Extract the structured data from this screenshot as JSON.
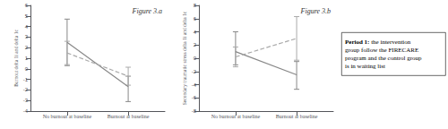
{
  "chart_data": [
    {
      "type": "line",
      "title": "Figure 3.a",
      "ylabel": "Burnout delta 1i and delta 1c",
      "x": [
        0,
        1
      ],
      "xlim": [
        -0.6,
        1.6
      ],
      "xticks": [
        {
          "value": 0,
          "label": "No burnout at baseline"
        },
        {
          "value": 1,
          "label": "Burnout at baseline"
        }
      ],
      "ylim": [
        -4,
        6
      ],
      "yticks": [
        -4,
        -3,
        -2,
        -1,
        0,
        1,
        2,
        3,
        4,
        5,
        6
      ],
      "grid": false,
      "series": [
        {
          "color": "#888888",
          "line_style": "solid",
          "values": [
            2.5,
            -1.7
          ],
          "yerr_low": [
            2.2,
            1.4
          ],
          "yerr_high": [
            2.2,
            1.0
          ]
        },
        {
          "color": "#aaaaaa",
          "line_style": "dashed",
          "values": [
            1.5,
            -0.7
          ],
          "yerr_low": [
            1.1,
            0.85
          ],
          "yerr_high": [
            1.1,
            0.85
          ]
        }
      ]
    },
    {
      "type": "line",
      "title": "Figure 3.b",
      "ylabel": "Secondary traumatic stress delta 1i and delta 1c",
      "x": [
        0,
        1
      ],
      "xlim": [
        -0.6,
        1.6
      ],
      "xticks": [
        {
          "value": 0,
          "label": "No burnout at baseline"
        },
        {
          "value": 1,
          "label": "Burnout at baseline"
        }
      ],
      "ylim": [
        -8,
        8
      ],
      "yticks": [
        -8,
        -6,
        -4,
        -2,
        0,
        2,
        4,
        6,
        8
      ],
      "grid": false,
      "series": [
        {
          "color": "#888888",
          "line_style": "solid",
          "values": [
            1.0,
            -2.5
          ],
          "yerr_low": [
            2.0,
            2.2
          ],
          "yerr_high": [
            3.0,
            2.0
          ]
        },
        {
          "color": "#aaaaaa",
          "line_style": "dashed",
          "values": [
            0.2,
            3.0
          ],
          "yerr_low": [
            1.5,
            3.3
          ],
          "yerr_high": [
            1.5,
            3.3
          ]
        }
      ],
      "annotations": [
        "Period 1:",
        " the intervention\ngroup follow the FIRECARE\nprogram and the control group\nis in waiting list"
      ]
    }
  ]
}
